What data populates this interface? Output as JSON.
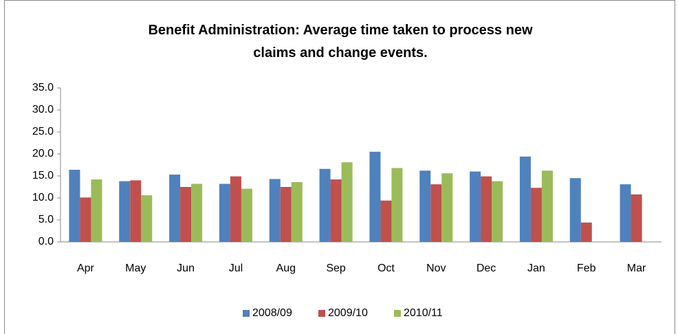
{
  "chart_data": {
    "type": "bar",
    "title": "Benefit Administration: Average time taken to process new claims and change events.",
    "categories": [
      "Apr",
      "May",
      "Jun",
      "Jul",
      "Aug",
      "Sep",
      "Oct",
      "Nov",
      "Dec",
      "Jan",
      "Feb",
      "Mar"
    ],
    "series": [
      {
        "name": "2008/09",
        "color": "#4f81bd",
        "values": [
          16.4,
          13.8,
          15.3,
          13.2,
          14.3,
          16.6,
          20.5,
          16.2,
          16.0,
          19.4,
          14.5,
          13.1
        ]
      },
      {
        "name": "2009/10",
        "color": "#c0504d",
        "values": [
          10.1,
          14.0,
          12.5,
          14.9,
          12.5,
          14.2,
          9.4,
          13.1,
          14.9,
          12.3,
          4.4,
          10.8
        ]
      },
      {
        "name": "2010/11",
        "color": "#9bbb59",
        "values": [
          14.2,
          10.6,
          13.2,
          12.1,
          13.6,
          18.1,
          16.8,
          15.6,
          13.8,
          16.2,
          null,
          null
        ]
      }
    ],
    "ylim": [
      0,
      35
    ],
    "yticks": [
      {
        "value": 0,
        "label": "0.0"
      },
      {
        "value": 5,
        "label": "5.0"
      },
      {
        "value": 10,
        "label": "10.0"
      },
      {
        "value": 15,
        "label": "15.0"
      },
      {
        "value": 20,
        "label": "20.0"
      },
      {
        "value": 25,
        "label": "25.0"
      },
      {
        "value": 30,
        "label": "30.0"
      },
      {
        "value": 35,
        "label": "35.0"
      }
    ],
    "grid": false,
    "legend": "bottom"
  }
}
